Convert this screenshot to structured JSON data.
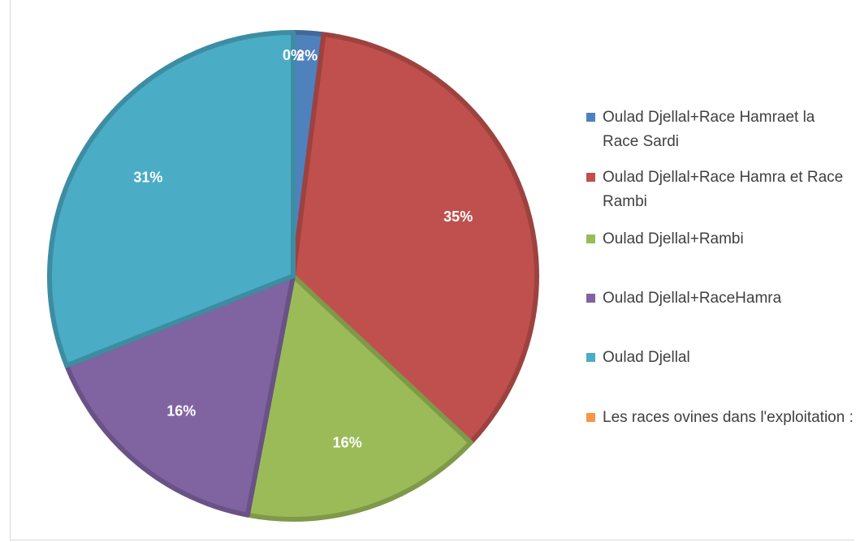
{
  "chart_data": {
    "type": "pie",
    "title": "",
    "slices": [
      {
        "label": "Oulad Djellal+Race Hamraet la Race Sardi",
        "value": 2,
        "display": "2%",
        "color": "#4f81bd"
      },
      {
        "label": "Oulad Djellal+Race Hamra et Race Rambi",
        "value": 35,
        "display": "35%",
        "color": "#c0504d"
      },
      {
        "label": "Oulad Djellal+Rambi",
        "value": 16,
        "display": "16%",
        "color": "#9bbb59"
      },
      {
        "label": "Oulad Djellal+RaceHamra",
        "value": 16,
        "display": "16%",
        "color": "#8064a2"
      },
      {
        "label": "Oulad Djellal",
        "value": 31,
        "display": "31%",
        "color": "#4bacc6"
      },
      {
        "label": "Les races ovines dans l'exploitation :",
        "value": 0,
        "display": "0%",
        "color": "#f79646"
      }
    ],
    "legend_position": "right"
  }
}
